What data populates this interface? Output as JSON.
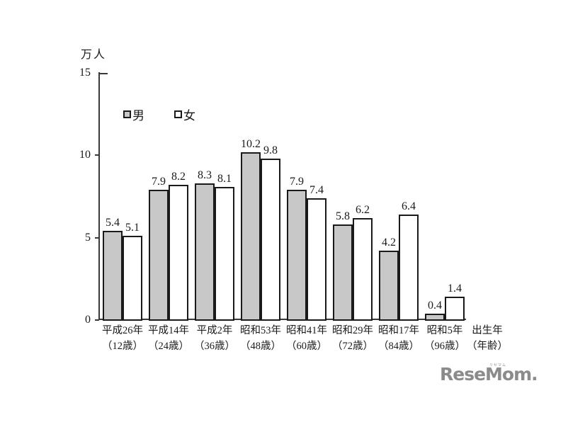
{
  "chart_data": {
    "type": "bar",
    "title": "",
    "ylabel": "万人",
    "ylim": [
      0,
      15
    ],
    "yticks": [
      0,
      5,
      10,
      15
    ],
    "grid": false,
    "legend_position": "top-left-inside",
    "categories": [
      {
        "line1": "平成26年",
        "line2": "（12歳）"
      },
      {
        "line1": "平成14年",
        "line2": "（24歳）"
      },
      {
        "line1": "平成2年",
        "line2": "（36歳）"
      },
      {
        "line1": "昭和53年",
        "line2": "（48歳）"
      },
      {
        "line1": "昭和41年",
        "line2": "（60歳）"
      },
      {
        "line1": "昭和29年",
        "line2": "（72歳）"
      },
      {
        "line1": "昭和17年",
        "line2": "（84歳）"
      },
      {
        "line1": "昭和5年",
        "line2": "（96歳）"
      }
    ],
    "series": [
      {
        "name": "男",
        "fill": "#c8c8c8",
        "values": [
          5.4,
          7.9,
          8.3,
          10.2,
          7.9,
          5.8,
          4.2,
          0.4
        ]
      },
      {
        "name": "女",
        "fill": "#ffffff",
        "values": [
          5.1,
          8.2,
          8.1,
          9.8,
          7.4,
          6.2,
          6.4,
          1.4
        ]
      }
    ],
    "x_axis_note_line1": "出生年",
    "x_axis_note_line2": "（年齢）"
  },
  "colors": {
    "male_fill": "#c8c8c8",
    "female_fill": "#ffffff",
    "bar_border": "#1a1a1a",
    "axis": "#3a3a3a",
    "text": "#1a1a1a",
    "logo": "#8b8b8b"
  },
  "logo": {
    "text": "ReseMom.",
    "ruby": "リセマム"
  }
}
